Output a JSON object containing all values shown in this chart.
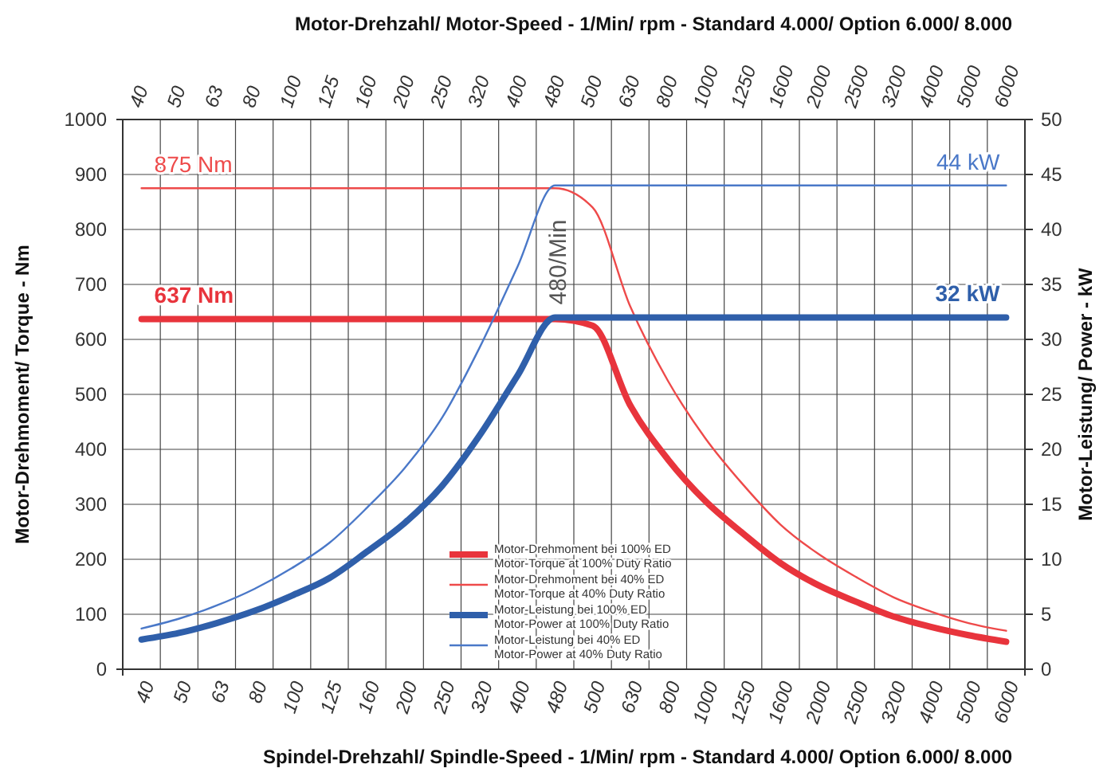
{
  "chart_data": {
    "type": "line",
    "xlabel": "Spindel-Drehzahl/ Spindle-Speed - 1/Min/ rpm - Standard 4.000/ Option 6.000/ 8.000",
    "x2label": "Motor-Drehzahl/ Motor-Speed - 1/Min/ rpm - Standard 4.000/ Option 6.000/ 8.000",
    "ylabel": "Motor-Drehmoment/ Torque - Nm",
    "y2label": "Motor-Leistung/ Power - kW",
    "categories": [
      "40",
      "50",
      "63",
      "80",
      "100",
      "125",
      "160",
      "200",
      "250",
      "320",
      "400",
      "480",
      "500",
      "630",
      "800",
      "1000",
      "1250",
      "1600",
      "2000",
      "2500",
      "3200",
      "4000",
      "5000",
      "6000"
    ],
    "series": [
      {
        "name": "Motor-Drehmoment bei 100% ED\nMotor-Torque at 100% Duty Ratio",
        "color": "#e8343c",
        "values": [
          637,
          637,
          637,
          637,
          637,
          637,
          637,
          637,
          637,
          637,
          637,
          637,
          625,
          480,
          382,
          306,
          247,
          193,
          153,
          123,
          96,
          77,
          62,
          50
        ]
      },
      {
        "name": "Motor-Drehmoment bei 40% ED\nMotor-Torque at 40% Duty Ratio",
        "color": "#ee4a4a",
        "values": [
          875,
          875,
          875,
          875,
          875,
          875,
          875,
          875,
          875,
          875,
          875,
          875,
          840,
          660,
          525,
          420,
          336,
          263,
          210,
          168,
          131,
          105,
          84,
          70
        ]
      },
      {
        "name": "Motor-Leistung bei 100% ED\nMotor-Power at 100% Duty Ratio",
        "color": "#2f5faa",
        "axis": "y2",
        "values": [
          2.7,
          3.3,
          4.2,
          5.3,
          6.7,
          8.3,
          10.7,
          13.3,
          16.7,
          21.3,
          26.7,
          32,
          32,
          32,
          32,
          32,
          32,
          32,
          32,
          32,
          32,
          32,
          32,
          32
        ]
      },
      {
        "name": "Motor-Leistung bei 40% ED\nMotor-Power at 40% Duty Ratio",
        "color": "#4a78c8",
        "axis": "y2",
        "values": [
          3.7,
          4.6,
          5.8,
          7.3,
          9.2,
          11.5,
          14.7,
          18.3,
          22.9,
          29.3,
          36.6,
          44,
          44,
          44,
          44,
          44,
          44,
          44,
          44,
          44,
          44,
          44,
          44,
          44
        ]
      }
    ],
    "ylim": [
      0,
      1000
    ],
    "yticks": [
      0,
      100,
      200,
      300,
      400,
      500,
      600,
      700,
      800,
      900,
      1000
    ],
    "y2lim": [
      0,
      50
    ],
    "y2ticks": [
      0,
      5,
      10,
      15,
      20,
      25,
      30,
      35,
      40,
      45,
      50
    ],
    "annotations": [
      {
        "text": "875 Nm",
        "x": "40",
        "y": 875
      },
      {
        "text": "637 Nm",
        "x": "40",
        "y": 637
      },
      {
        "text": "44 kW",
        "x": "6000",
        "y": 880
      },
      {
        "text": "32 kW",
        "x": "6000",
        "y": 640
      },
      "480/Min"
    ],
    "grid": true,
    "legend": "bottom",
    "marker": "none",
    "line_style": "solid"
  }
}
